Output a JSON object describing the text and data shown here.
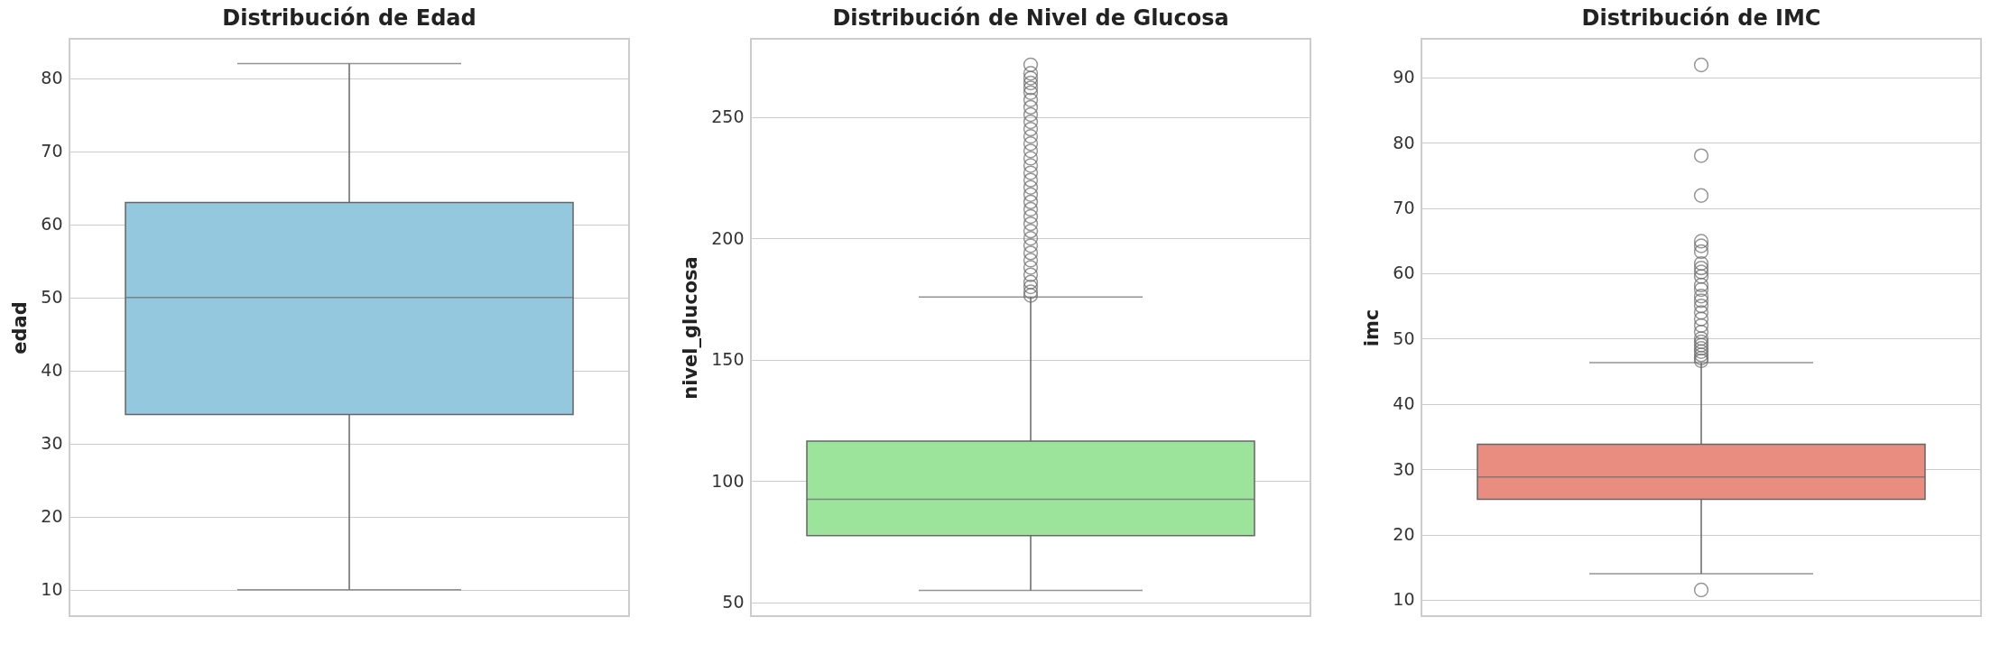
{
  "chart_data": [
    {
      "type": "box",
      "title": "Distribución de Edad",
      "ylabel": "edad",
      "categories": [
        null
      ],
      "colors": [
        "#93c8de"
      ],
      "boxes": [
        {
          "low": 10,
          "q1": 34,
          "median": 50,
          "q3": 63,
          "high": 82
        }
      ],
      "ylim": [
        6.4,
        85.4
      ],
      "yticks": [
        10,
        20,
        30,
        40,
        50,
        60,
        70,
        80
      ],
      "grid": "y",
      "tick_labels": "y"
    },
    {
      "type": "box",
      "title": "Distribución de Nivel de Glucosa",
      "ylabel": "nivel_glucosa",
      "categories": [
        null
      ],
      "colors": [
        "#9ce39c"
      ],
      "boxes": [
        {
          "low": 55,
          "q1": 77.6,
          "median": 92.5,
          "q3": 116.5,
          "high": 175.8,
          "outliers": [
            176.5,
            178,
            180,
            182,
            185,
            188,
            191,
            194,
            197,
            200,
            203,
            206,
            209,
            212,
            215,
            218,
            221,
            224,
            227,
            230,
            233,
            236,
            239,
            242,
            245,
            248,
            251,
            254,
            257,
            260,
            262,
            264,
            266,
            268,
            271.5
          ]
        }
      ],
      "ylim": [
        44.4,
        282.2
      ],
      "yticks": [
        50,
        100,
        150,
        200,
        250
      ],
      "grid": "y",
      "tick_labels": "y"
    },
    {
      "type": "box",
      "title": "Distribución de IMC",
      "ylabel": "imc",
      "categories": [
        null
      ],
      "colors": [
        "#e88d80"
      ],
      "boxes": [
        {
          "low": 14,
          "q1": 25.4,
          "median": 28.8,
          "q3": 33.8,
          "high": 46.3,
          "outliers": [
            11.5,
            46.6,
            47,
            47.5,
            48,
            48.5,
            49,
            49.5,
            50,
            51,
            52,
            53,
            54,
            55,
            55.8,
            56.5,
            57.5,
            58.2,
            59.5,
            60.2,
            60.8,
            61.5,
            63.3,
            64.2,
            64.9,
            71.9,
            78,
            91.9
          ]
        }
      ],
      "ylim": [
        7.5,
        95.9
      ],
      "yticks": [
        10,
        20,
        30,
        40,
        50,
        60,
        70,
        80,
        90
      ],
      "grid": "y",
      "tick_labels": "y"
    }
  ]
}
